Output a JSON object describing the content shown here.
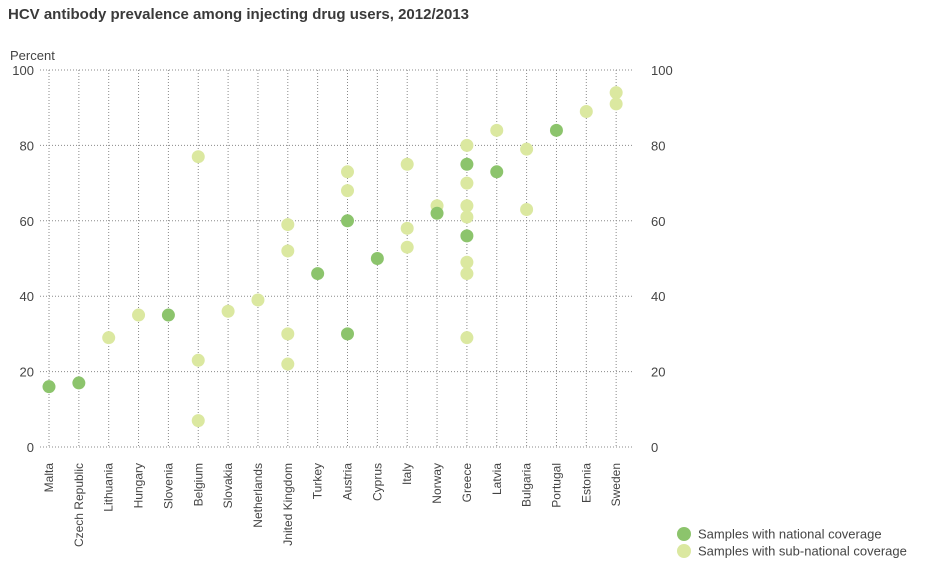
{
  "title": "HCV antibody prevalence among injecting drug users, 2012/2013",
  "chart_data": {
    "type": "scatter",
    "title": "HCV antibody prevalence among injecting drug users, 2012/2013",
    "ylabel": "Percent",
    "xlabel": "",
    "ylim": [
      0,
      100
    ],
    "yticks": [
      0,
      20,
      40,
      60,
      80,
      100
    ],
    "grid": "dotted",
    "legend_position": "bottom-right",
    "categories": [
      "Malta",
      "Czech Republic",
      "Lithuania",
      "Hungary",
      "Slovenia",
      "Belgium",
      "Slovakia",
      "Netherlands",
      "Jnited Kingdom",
      "Turkey",
      "Austria",
      "Cyprus",
      "Italy",
      "Norway",
      "Greece",
      "Latvia",
      "Bulgaria",
      "Portugal",
      "Estonia",
      "Sweden"
    ],
    "series": [
      {
        "name": "Samples with national coverage",
        "color": "#8cc46c",
        "points": [
          {
            "x": "Malta",
            "y": 16
          },
          {
            "x": "Czech Republic",
            "y": 17
          },
          {
            "x": "Slovenia",
            "y": 35
          },
          {
            "x": "Turkey",
            "y": 46
          },
          {
            "x": "Austria",
            "y": 60
          },
          {
            "x": "Austria",
            "y": 30
          },
          {
            "x": "Cyprus",
            "y": 50
          },
          {
            "x": "Norway",
            "y": 62
          },
          {
            "x": "Greece",
            "y": 75
          },
          {
            "x": "Greece",
            "y": 56
          },
          {
            "x": "Latvia",
            "y": 73
          },
          {
            "x": "Portugal",
            "y": 84
          }
        ]
      },
      {
        "name": "Samples with sub-national coverage",
        "color": "#dbe8a0",
        "points": [
          {
            "x": "Lithuania",
            "y": 29
          },
          {
            "x": "Hungary",
            "y": 35
          },
          {
            "x": "Belgium",
            "y": 77
          },
          {
            "x": "Belgium",
            "y": 23
          },
          {
            "x": "Belgium",
            "y": 7
          },
          {
            "x": "Slovakia",
            "y": 36
          },
          {
            "x": "Netherlands",
            "y": 39
          },
          {
            "x": "Jnited Kingdom",
            "y": 59
          },
          {
            "x": "Jnited Kingdom",
            "y": 52
          },
          {
            "x": "Jnited Kingdom",
            "y": 30
          },
          {
            "x": "Jnited Kingdom",
            "y": 22
          },
          {
            "x": "Austria",
            "y": 73
          },
          {
            "x": "Austria",
            "y": 68
          },
          {
            "x": "Italy",
            "y": 75
          },
          {
            "x": "Italy",
            "y": 58
          },
          {
            "x": "Italy",
            "y": 53
          },
          {
            "x": "Norway",
            "y": 64
          },
          {
            "x": "Greece",
            "y": 80
          },
          {
            "x": "Greece",
            "y": 70
          },
          {
            "x": "Greece",
            "y": 64
          },
          {
            "x": "Greece",
            "y": 61
          },
          {
            "x": "Greece",
            "y": 49
          },
          {
            "x": "Greece",
            "y": 46
          },
          {
            "x": "Greece",
            "y": 29
          },
          {
            "x": "Latvia",
            "y": 84
          },
          {
            "x": "Bulgaria",
            "y": 79
          },
          {
            "x": "Bulgaria",
            "y": 63
          },
          {
            "x": "Estonia",
            "y": 89
          },
          {
            "x": "Sweden",
            "y": 94
          },
          {
            "x": "Sweden",
            "y": 91
          }
        ]
      }
    ]
  }
}
